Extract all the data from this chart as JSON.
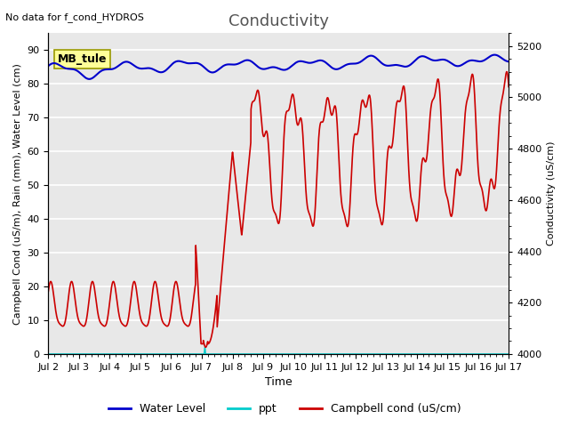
{
  "title": "Conductivity",
  "top_left_text": "No data for f_cond_HYDROS",
  "box_label": "MB_tule",
  "xlabel": "Time",
  "ylabel_left": "Campbell Cond (uS/m), Rain (mm), Water Level (cm)",
  "ylabel_right": "Conductivity (uS/cm)",
  "xlim": [
    0,
    15
  ],
  "ylim_left": [
    0,
    95
  ],
  "ylim_right": [
    4000,
    5250
  ],
  "xtick_labels": [
    "Jul 2",
    "Jul 3",
    "Jul 4",
    "Jul 5",
    "Jul 6",
    "Jul 7",
    "Jul 8",
    "Jul 9",
    "Jul 10",
    "Jul 11",
    "Jul 12",
    "Jul 13",
    "Jul 14",
    "Jul 15",
    "Jul 16",
    "Jul 17"
  ],
  "ytick_left": [
    0,
    10,
    20,
    30,
    40,
    50,
    60,
    70,
    80,
    90
  ],
  "ytick_right": [
    4000,
    4200,
    4400,
    4600,
    4800,
    5000,
    5200
  ],
  "bg_color": "#e8e8e8",
  "grid_color": "#ffffff",
  "fig_bg_color": "#ffffff",
  "water_level_color": "#0000cc",
  "ppt_color": "#00cccc",
  "campbell_color": "#cc0000",
  "legend_entries": [
    "Water Level",
    "ppt",
    "Campbell cond (uS/cm)"
  ]
}
